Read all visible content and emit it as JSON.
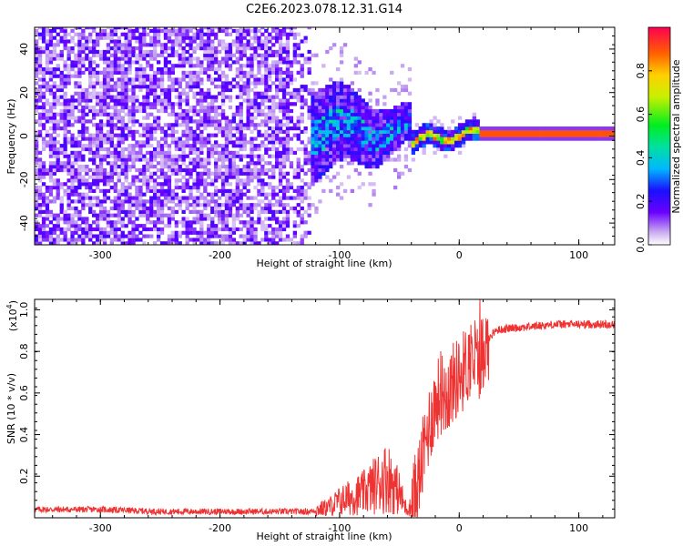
{
  "title": "C2E6.2023.078.12.31.G14",
  "chart_data": [
    {
      "type": "heatmap",
      "xlabel": "Height of straight line (km)",
      "ylabel": "Frequency (Hz)",
      "xlim": [
        -355,
        130
      ],
      "ylim": [
        -50,
        50
      ],
      "x_ticks": [
        -300,
        -200,
        -100,
        0,
        100
      ],
      "y_ticks": [
        -40,
        -20,
        0,
        20,
        40
      ],
      "colorbar": {
        "label": "Normalized spectral amplitude",
        "range": [
          0.0,
          1.0
        ],
        "ticks": [
          0.0,
          0.2,
          0.4,
          0.6,
          0.8
        ],
        "tick_labels": [
          "0.0",
          "0.2",
          "0.4",
          "0.6",
          "0.8"
        ],
        "colormap": "rainbow"
      },
      "regions": [
        {
          "x_range": [
            -355,
            -125
          ],
          "f_range": [
            -50,
            50
          ],
          "amplitude": [
            0.0,
            0.12
          ]
        },
        {
          "x_range": [
            -125,
            -40
          ],
          "f_range": [
            -15,
            18
          ],
          "amplitude": [
            0.05,
            0.45
          ]
        },
        {
          "x_range": [
            -40,
            130
          ],
          "f_center": 0.5,
          "amplitude": 0.9
        }
      ]
    },
    {
      "type": "line",
      "xlabel": "Height of straight line (km)",
      "ylabel": "SNR (10 * v/v)",
      "y_multiplier": "(x10",
      "y_multiplier_exp": "4",
      "y_multiplier_close": ")",
      "xlim": [
        -355,
        130
      ],
      "ylim": [
        0,
        1.05
      ],
      "x_ticks": [
        -300,
        -200,
        -100,
        0,
        100
      ],
      "y_ticks": [
        0.2,
        0.4,
        0.6,
        0.8,
        1.0
      ],
      "y_tick_labels": [
        "0.2",
        "0.4",
        "0.6",
        "0.8",
        "1.0"
      ],
      "color": "#ee3333",
      "x": [
        -355,
        -300,
        -250,
        -200,
        -150,
        -125,
        -110,
        -100,
        -90,
        -80,
        -70,
        -60,
        -50,
        -45,
        -40,
        -35,
        -30,
        -25,
        -20,
        -15,
        -10,
        -5,
        0,
        5,
        10,
        15,
        20,
        25,
        30,
        40,
        60,
        80,
        100,
        130
      ],
      "y": [
        0.04,
        0.04,
        0.03,
        0.03,
        0.03,
        0.03,
        0.05,
        0.08,
        0.1,
        0.12,
        0.16,
        0.2,
        0.12,
        0.05,
        0.05,
        0.15,
        0.3,
        0.45,
        0.55,
        0.6,
        0.6,
        0.65,
        0.68,
        0.72,
        0.78,
        0.75,
        0.8,
        0.86,
        0.9,
        0.91,
        0.92,
        0.93,
        0.93,
        0.93
      ]
    }
  ]
}
